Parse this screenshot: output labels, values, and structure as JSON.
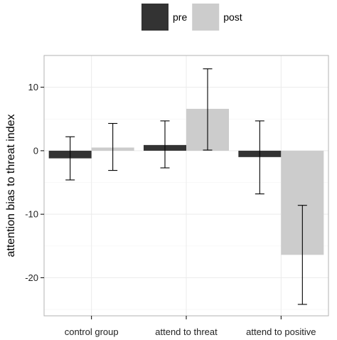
{
  "chart_data": {
    "type": "bar",
    "categories": [
      "control group",
      "attend to threat",
      "attend to positive"
    ],
    "series": [
      {
        "name": "pre",
        "values": [
          -1.2,
          0.9,
          -1.0
        ],
        "error_low": [
          -4.6,
          -2.7,
          -6.8
        ],
        "error_high": [
          2.2,
          4.7,
          4.7
        ],
        "color": "#333333"
      },
      {
        "name": "post",
        "values": [
          0.5,
          6.6,
          -16.4
        ],
        "error_low": [
          -3.1,
          0.1,
          -24.2
        ],
        "error_high": [
          4.3,
          12.9,
          -8.6
        ],
        "color": "#cccccc"
      }
    ],
    "title": "",
    "xlabel": "",
    "ylabel": "attention bias to threat index",
    "ylim": [
      -26,
      15
    ],
    "yticks": [
      10,
      0,
      -10,
      -20
    ],
    "ytick_labels": [
      "10",
      "0",
      "-10",
      "-20"
    ],
    "grid": true,
    "legend_position": "top",
    "panel_border_color": "#b3b3b3",
    "grid_color": "#ebebeb"
  }
}
